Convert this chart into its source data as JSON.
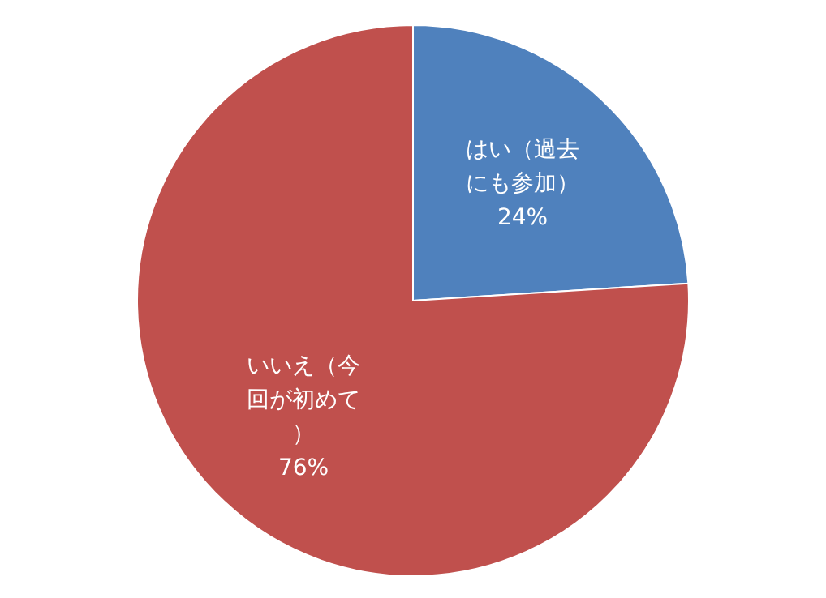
{
  "chart_data": {
    "type": "pie",
    "categories": [
      "はい（過去にも参加）",
      "いいえ（今回が初めて）"
    ],
    "values": [
      24,
      76
    ],
    "colors": [
      "#4f81bd",
      "#c0504d"
    ],
    "value_labels": [
      "24%",
      "76%"
    ]
  }
}
